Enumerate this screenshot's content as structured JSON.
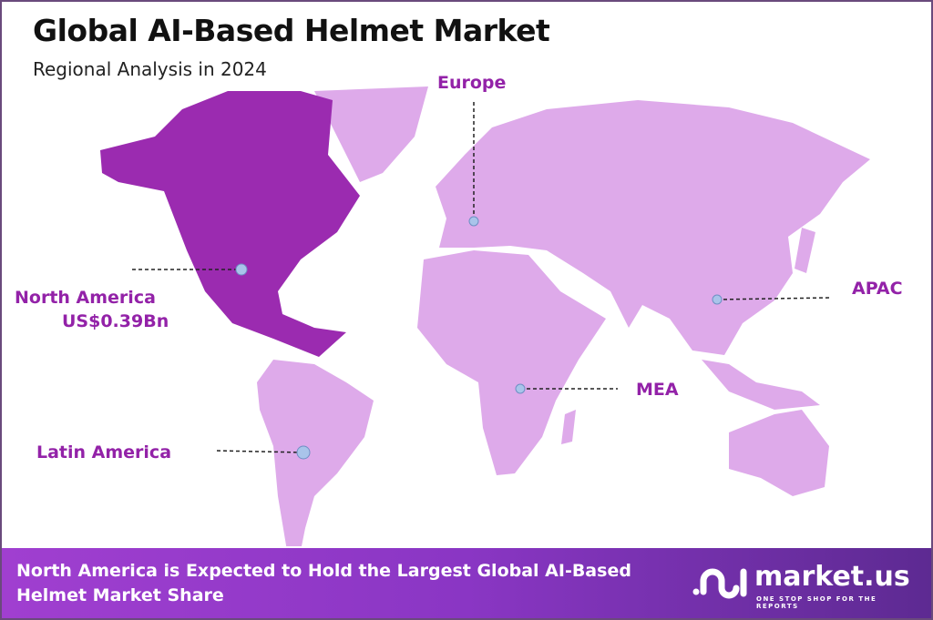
{
  "header": {
    "title": "Global AI-Based Helmet Market",
    "subtitle": "Regional Analysis in 2024"
  },
  "colors": {
    "highlight_region": "#9b2bb0",
    "other_regions": "#deaaea",
    "label": "#9322a8",
    "marker": "#a9c4ea",
    "footer_start": "#a03fd0",
    "footer_end": "#5d2a92"
  },
  "regions": [
    {
      "name": "North America",
      "value": "US$0.39Bn",
      "highlighted": true
    },
    {
      "name": "Europe",
      "highlighted": false
    },
    {
      "name": "APAC",
      "highlighted": false
    },
    {
      "name": "MEA",
      "highlighted": false
    },
    {
      "name": "Latin America",
      "highlighted": false
    }
  ],
  "footer": {
    "text": "North America is Expected to Hold the Largest Global AI-Based Helmet Market Share",
    "logo_name": "market.us",
    "logo_tagline": "ONE STOP SHOP FOR THE REPORTS"
  }
}
